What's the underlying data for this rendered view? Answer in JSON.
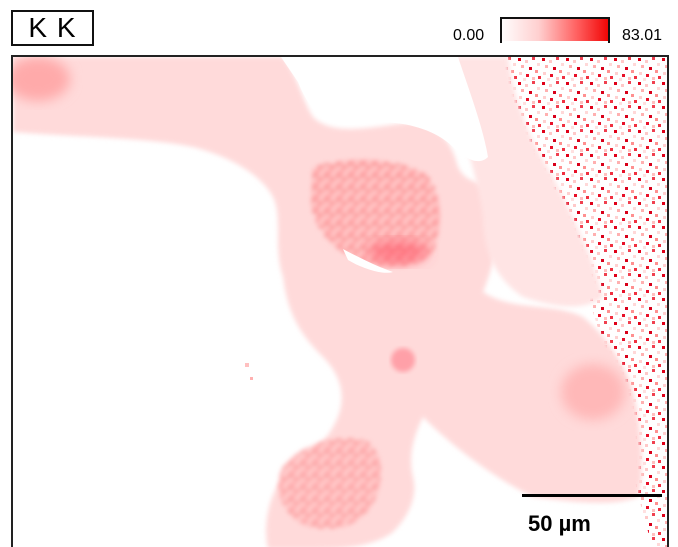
{
  "map": {
    "element_label": "K K",
    "scale_min": "0.00",
    "scale_max": "83.01",
    "scalebar_label": "50 µm"
  },
  "colors": {
    "background": "#ffffff",
    "low": "#ffe5e5",
    "mid": "#ffaaaa",
    "high": "#ee0000",
    "frame": "#222222"
  }
}
